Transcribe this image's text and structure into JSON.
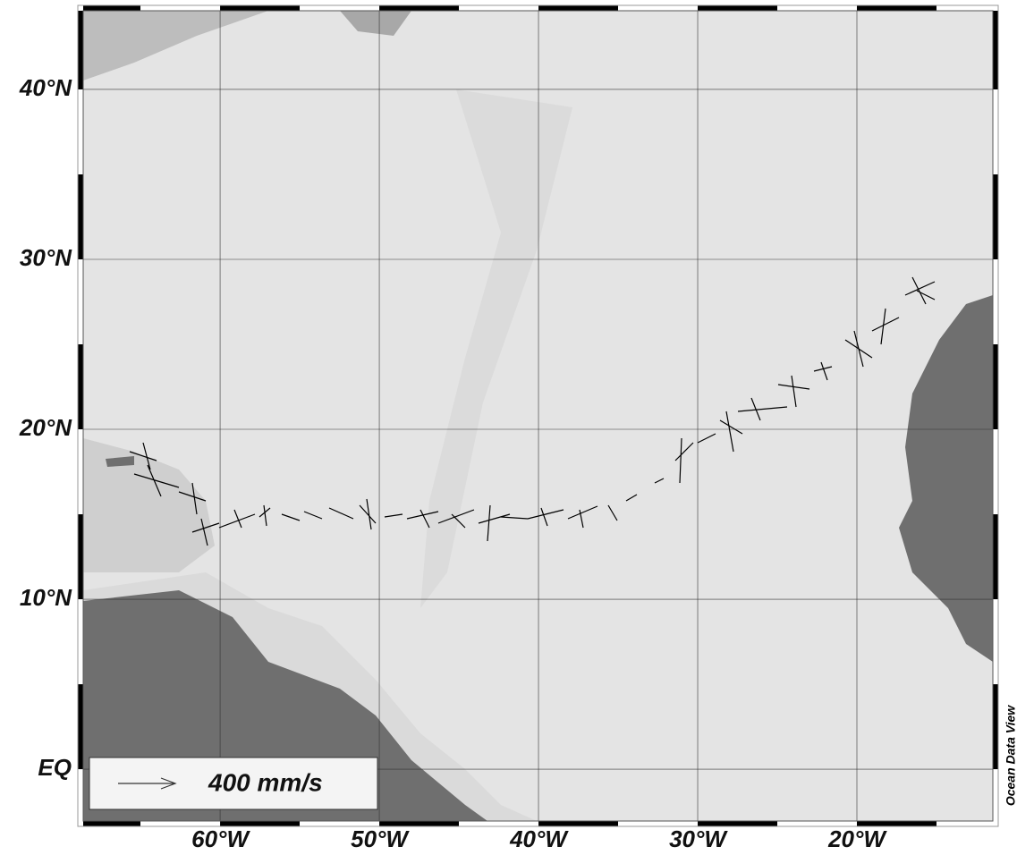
{
  "map": {
    "xlim": [
      -68.6,
      -11.46
    ],
    "ylim": [
      -3.05,
      44.63
    ],
    "lat_ticks": [
      {
        "value": 40,
        "label": "40°N"
      },
      {
        "value": 30,
        "label": "30°N"
      },
      {
        "value": 20,
        "label": "20°N"
      },
      {
        "value": 10,
        "label": "10°N"
      },
      {
        "value": 0,
        "label": "EQ"
      }
    ],
    "lon_ticks": [
      {
        "value": -60,
        "label": "60°W"
      },
      {
        "value": -50,
        "label": "50°W"
      },
      {
        "value": -40,
        "label": "40°W"
      },
      {
        "value": -30,
        "label": "30°W"
      },
      {
        "value": -20,
        "label": "20°W"
      }
    ],
    "legend": "400 mm/s",
    "credit": "Ocean Data View"
  }
}
